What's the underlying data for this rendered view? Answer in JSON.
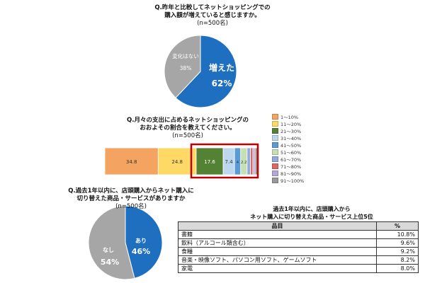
{
  "q1": {
    "title_lines": [
      "Q.昨年と比較してネットショッピングでの",
      "購入額が増えていると感じますか。"
    ],
    "n": "(n=500名)"
  },
  "q2": {
    "title_lines": [
      "Q.月々の支出に占めるネットショッピングの",
      "おおよその割合を教えてください。"
    ],
    "n": "(n=500名)"
  },
  "q3": {
    "title_lines": [
      "Q.過去1年以内に、店頭購入からネット購入に",
      "切り替えた商品・サービスがありますか"
    ],
    "n": "(n=500名)"
  },
  "ranking": {
    "title_lines": [
      "過去1年以内に、店頭購入から",
      "ネット購入に切り替えた商品・サービス上位5位"
    ],
    "headers": [
      "品目",
      "%"
    ],
    "rows": [
      {
        "item": "書籍",
        "pct": "10.8%"
      },
      {
        "item": "飲料（アルコール類含む）",
        "pct": "9.6%"
      },
      {
        "item": "食糧",
        "pct": "9.2%"
      },
      {
        "item": "音楽・映像ソフト、パソコン用ソフト、ゲームソフト",
        "pct": "8.2%"
      },
      {
        "item": "家電",
        "pct": "8.0%"
      }
    ]
  },
  "colors": {
    "blue": "#1f6fc0",
    "gray": "#a6a6a6",
    "highlight_box": "#c00000"
  },
  "chart_data": [
    {
      "type": "pie",
      "labels": [
        "増えた",
        "変化はない"
      ],
      "values": [
        62,
        38
      ],
      "value_labels": [
        "62%",
        "38%"
      ],
      "colors": [
        "#1f6fc0",
        "#a6a6a6"
      ]
    },
    {
      "type": "bar",
      "orientation": "horizontal-stacked",
      "series": [
        {
          "name": "1～10%",
          "value": 34.8,
          "color": "#f4a460"
        },
        {
          "name": "11～20%",
          "value": 24.8,
          "color": "#ffd966"
        },
        {
          "name": "21～30%",
          "value": 17.6,
          "color": "#548235"
        },
        {
          "name": "31～40%",
          "value": 7.4,
          "color": "#bdd7ee"
        },
        {
          "name": "41～50%",
          "value": 4.0,
          "color": "#5b9bd5"
        },
        {
          "name": "51～60%",
          "value": 4.2,
          "color": "#c6e0b4"
        },
        {
          "name": "61～70%",
          "value": 2.2,
          "color": "#8faadc"
        },
        {
          "name": "71～80%",
          "value": 1.6,
          "color": "#e06666"
        },
        {
          "name": "81～90%",
          "value": 1.4,
          "color": "#b4a7d6"
        },
        {
          "name": "91～100%",
          "value": 1.8,
          "color": "#999999"
        }
      ],
      "segment_labels": [
        "34.8",
        "24.8",
        "17.6",
        "7.4",
        "4",
        "2.2"
      ],
      "highlight_range": [
        "21～30%",
        "91～100%"
      ]
    },
    {
      "type": "pie",
      "labels": [
        "あり",
        "なし"
      ],
      "values": [
        46,
        54
      ],
      "value_labels": [
        "46%",
        "54%"
      ],
      "colors": [
        "#1f6fc0",
        "#a6a6a6"
      ]
    }
  ]
}
